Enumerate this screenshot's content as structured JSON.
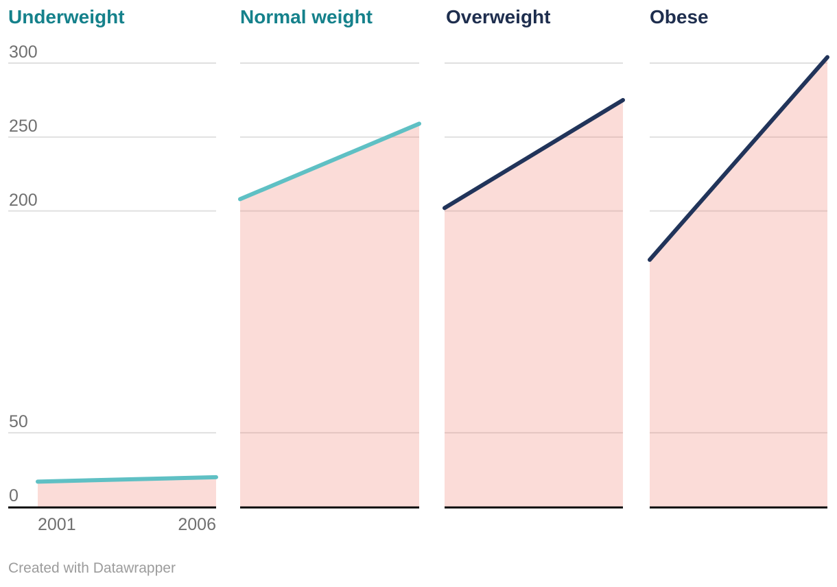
{
  "chart_data": {
    "type": "area",
    "title": "",
    "x": [
      "2001",
      "2006"
    ],
    "x_tick_labels": [
      "2001",
      "2006"
    ],
    "y_ticks": [
      0,
      50,
      200,
      250,
      300
    ],
    "ylim": [
      0,
      300
    ],
    "legend_position": "none",
    "grid": true,
    "panels": [
      {
        "title": "Underweight",
        "values": [
          17,
          20
        ],
        "title_color": "#15818b",
        "line_color": "#5fc0c4"
      },
      {
        "title": "Normal weight",
        "values": [
          208,
          259
        ],
        "title_color": "#15818b",
        "line_color": "#5fc0c4"
      },
      {
        "title": "Overweight",
        "values": [
          202,
          275
        ],
        "title_color": "#1e2e4e",
        "line_color": "#21345a"
      },
      {
        "title": "Obese",
        "values": [
          167,
          304
        ],
        "title_color": "#1e2e4e",
        "line_color": "#21345a"
      }
    ],
    "area_fill": "#ef7464",
    "area_opacity": 0.25,
    "grid_color": "#e0e0e0",
    "axis_color": "#0a0a0a",
    "label_color": "#707070"
  },
  "footer": {
    "credit": "Created with Datawrapper"
  }
}
